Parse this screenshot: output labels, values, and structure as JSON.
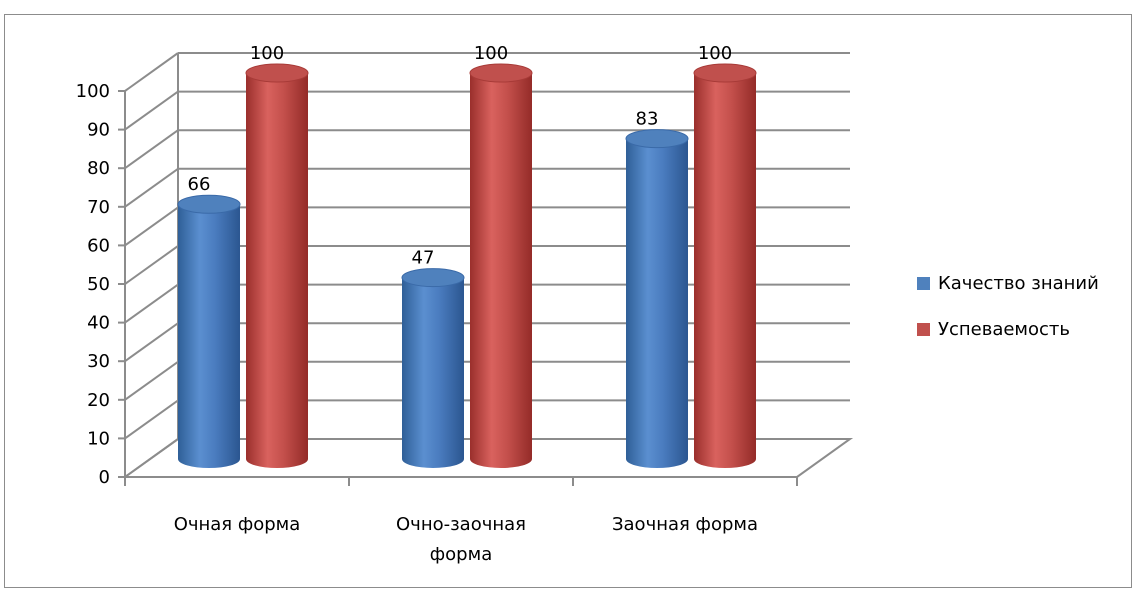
{
  "chart_data": {
    "type": "bar",
    "categories": [
      "Очная форма",
      "Очно-заочная форма",
      "Заочная форма"
    ],
    "category_lines": [
      [
        "Очная форма"
      ],
      [
        "Очно-заочная",
        "форма"
      ],
      [
        "Заочная форма"
      ]
    ],
    "series": [
      {
        "name": "Качество знаний",
        "values": [
          66,
          47,
          83
        ],
        "color": "#4f81bd"
      },
      {
        "name": "Успеваемость",
        "values": [
          100,
          100,
          100
        ],
        "color": "#c0504d"
      }
    ],
    "yticks": [
      "0",
      "10",
      "20",
      "30",
      "40",
      "50",
      "60",
      "70",
      "80",
      "90",
      "100"
    ],
    "ylim": [
      0,
      100
    ],
    "grid": true,
    "three_d": true,
    "legend_position": "right"
  }
}
